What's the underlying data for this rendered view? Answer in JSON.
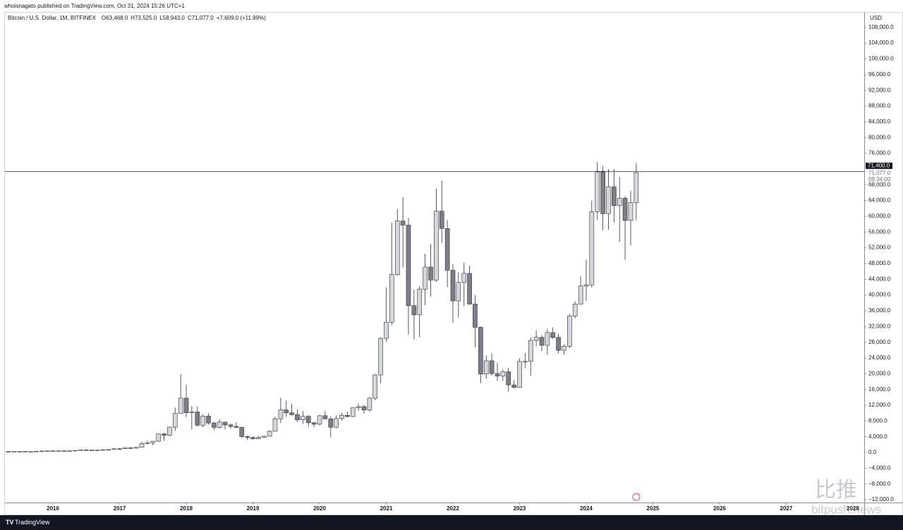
{
  "chart_data": {
    "type": "candlestick",
    "publisher": "whoisnagato published on TradingView.com, Oct 31, 2024 15:26 UTC+1",
    "symbol": "Bitcoin / U.S. Dollar, 1M, BITFINEX",
    "ohlc_texts": [
      "O63,468.0",
      "H73,525.0",
      "L58,943.0",
      "C71,077.0",
      "+7,609.0 (+11.99%)"
    ],
    "currency": "USD",
    "price_line": {
      "value": 71400,
      "label": "71,400.0"
    },
    "last_price": {
      "value": 71077,
      "label": "71,077.0"
    },
    "countdown": "09:34:00",
    "footer": "TradingView",
    "watermark": [
      "比推",
      "bitpush.news"
    ],
    "up_color": "#d6d7db",
    "down_color": "#7c7e88",
    "x": [
      2015.333,
      2015.417,
      2015.5,
      2015.583,
      2015.667,
      2015.75,
      2015.833,
      2015.917,
      2016,
      2016.083,
      2016.167,
      2016.25,
      2016.333,
      2016.417,
      2016.5,
      2016.583,
      2016.667,
      2016.75,
      2016.833,
      2016.917,
      2017,
      2017.083,
      2017.167,
      2017.25,
      2017.333,
      2017.417,
      2017.5,
      2017.583,
      2017.667,
      2017.75,
      2017.833,
      2017.917,
      2018,
      2018.083,
      2018.167,
      2018.25,
      2018.333,
      2018.417,
      2018.5,
      2018.583,
      2018.667,
      2018.75,
      2018.833,
      2018.917,
      2019,
      2019.083,
      2019.167,
      2019.25,
      2019.333,
      2019.417,
      2019.5,
      2019.583,
      2019.667,
      2019.75,
      2019.833,
      2019.917,
      2020,
      2020.083,
      2020.167,
      2020.25,
      2020.333,
      2020.417,
      2020.5,
      2020.583,
      2020.667,
      2020.75,
      2020.833,
      2020.917,
      2021,
      2021.083,
      2021.167,
      2021.25,
      2021.333,
      2021.417,
      2021.5,
      2021.583,
      2021.667,
      2021.75,
      2021.833,
      2021.917,
      2022,
      2022.083,
      2022.167,
      2022.25,
      2022.333,
      2022.417,
      2022.5,
      2022.583,
      2022.667,
      2022.75,
      2022.833,
      2022.917,
      2023,
      2023.083,
      2023.167,
      2023.25,
      2023.333,
      2023.417,
      2023.5,
      2023.583,
      2023.667,
      2023.75,
      2023.833,
      2023.917,
      2024,
      2024.083,
      2024.167,
      2024.25,
      2024.333,
      2024.417,
      2024.5,
      2024.583,
      2024.667,
      2024.75
    ],
    "open": [
      236,
      230,
      263,
      284,
      230,
      236,
      314,
      378,
      430,
      368,
      437,
      416,
      448,
      531,
      673,
      624,
      575,
      609,
      700,
      745,
      966,
      965,
      1190,
      1080,
      1350,
      2300,
      2480,
      2870,
      4730,
      4340,
      6450,
      9950,
      13800,
      10100,
      10300,
      6930,
      9240,
      7500,
      6390,
      7730,
      7010,
      6630,
      6370,
      4040,
      3830,
      3460,
      3850,
      4150,
      5400,
      8570,
      10820,
      10080,
      9600,
      8290,
      9190,
      7560,
      7190,
      9350,
      8540,
      6420,
      8630,
      9460,
      9140,
      11350,
      11660,
      10780,
      13800,
      19700,
      28990,
      33100,
      45200,
      58800,
      57750,
      37300,
      35000,
      41500,
      47100,
      43800,
      61300,
      56900,
      46300,
      38500,
      43200,
      45500,
      37700,
      31800,
      19950,
      23300,
      20050,
      19430,
      20500,
      17170,
      16550,
      23130,
      23150,
      28480,
      29250,
      27220,
      30470,
      29230,
      25950,
      26970,
      34650,
      37720,
      42280,
      42580,
      61180,
      71300,
      60650,
      67500,
      62700,
      64600,
      58970,
      63468
    ],
    "high": [
      247,
      268,
      315,
      285,
      245,
      334,
      502,
      467,
      462,
      445,
      440,
      467,
      550,
      780,
      690,
      625,
      630,
      740,
      755,
      980,
      1150,
      1200,
      1350,
      1360,
      2760,
      2990,
      2920,
      4750,
      5000,
      6470,
      11400,
      19890,
      17250,
      11800,
      11700,
      9770,
      10000,
      7760,
      8490,
      7760,
      7410,
      7680,
      6570,
      4300,
      4100,
      4200,
      4160,
      5600,
      9090,
      13880,
      13200,
      12330,
      10950,
      10500,
      9510,
      7750,
      9580,
      10500,
      9200,
      9470,
      10070,
      10380,
      11450,
      12470,
      12070,
      14100,
      19900,
      29300,
      41950,
      58350,
      61800,
      64900,
      59600,
      41300,
      42300,
      50500,
      52950,
      67000,
      69000,
      59100,
      47970,
      45800,
      48200,
      47450,
      40000,
      31950,
      24650,
      25200,
      22800,
      21080,
      21500,
      18400,
      23950,
      25250,
      29200,
      31000,
      29850,
      31400,
      31800,
      30200,
      27480,
      35200,
      38400,
      44750,
      48970,
      64000,
      73800,
      72800,
      71980,
      71950,
      70000,
      65100,
      66500,
      73525
    ],
    "low": [
      228,
      220,
      255,
      198,
      225,
      235,
      300,
      350,
      350,
      365,
      395,
      412,
      435,
      520,
      580,
      480,
      590,
      600,
      680,
      740,
      750,
      915,
      890,
      1060,
      1350,
      2100,
      1830,
      2700,
      2970,
      4150,
      5500,
      9950,
      9000,
      5900,
      6600,
      6430,
      7050,
      5750,
      6070,
      5880,
      6100,
      6200,
      3650,
      3150,
      3370,
      3390,
      3730,
      4080,
      5350,
      7510,
      9080,
      9400,
      7760,
      7300,
      6520,
      6430,
      6850,
      8450,
      3850,
      6150,
      8110,
      8900,
      8980,
      10550,
      9880,
      10380,
      13240,
      17600,
      28130,
      32300,
      44950,
      47000,
      30000,
      28800,
      29300,
      37400,
      39600,
      43300,
      53250,
      42000,
      32950,
      34300,
      37200,
      37600,
      26700,
      17600,
      18800,
      19550,
      18150,
      18200,
      15480,
      16300,
      16500,
      21400,
      19550,
      26950,
      25800,
      24800,
      28850,
      25200,
      24900,
      26550,
      34100,
      37620,
      38550,
      41890,
      59000,
      56500,
      56600,
      58400,
      53500,
      49000,
      52600,
      58943
    ],
    "close": [
      230,
      263,
      284,
      230,
      236,
      314,
      378,
      430,
      368,
      437,
      416,
      448,
      531,
      673,
      624,
      575,
      609,
      700,
      745,
      966,
      965,
      1190,
      1080,
      1350,
      2300,
      2480,
      2870,
      4730,
      4340,
      6450,
      9950,
      13800,
      10100,
      10300,
      6930,
      9240,
      7500,
      6390,
      7730,
      7010,
      6630,
      6370,
      4040,
      3830,
      3460,
      3850,
      4150,
      5400,
      8570,
      10820,
      10080,
      9600,
      8290,
      9190,
      7560,
      7190,
      9350,
      8540,
      6420,
      8630,
      9460,
      9140,
      11350,
      11660,
      10780,
      13800,
      19700,
      28990,
      33100,
      45200,
      58800,
      57750,
      37300,
      35000,
      41500,
      47100,
      43800,
      61300,
      56900,
      46300,
      38500,
      43200,
      45500,
      37700,
      31800,
      19950,
      23300,
      20050,
      19430,
      20500,
      17170,
      16550,
      23130,
      23150,
      28480,
      29250,
      27220,
      30470,
      29230,
      25950,
      26970,
      34650,
      37720,
      42280,
      42580,
      61180,
      71300,
      60650,
      67500,
      62700,
      64600,
      58970,
      63468,
      71077
    ],
    "xlim": [
      2015.28,
      2028.17
    ],
    "xticks": [
      2016,
      2017,
      2018,
      2019,
      2020,
      2021,
      2022,
      2023,
      2024,
      2025,
      2026,
      2027,
      2028
    ],
    "ylim": [
      -12700,
      111900
    ],
    "yticks": [
      {
        "value": 108000,
        "label": "108,000.0"
      },
      {
        "value": 104000,
        "label": "104,000.0"
      },
      {
        "value": 100000,
        "label": "100,000.0"
      },
      {
        "value": 96000,
        "label": "96,000.0"
      },
      {
        "value": 92000,
        "label": "92,000.0"
      },
      {
        "value": 88000,
        "label": "88,000.0"
      },
      {
        "value": 84000,
        "label": "84,000.0"
      },
      {
        "value": 80000,
        "label": "80,000.0"
      },
      {
        "value": 76000,
        "label": "76,000.0"
      },
      {
        "value": 68000,
        "label": "68,000.0"
      },
      {
        "value": 64000,
        "label": "64,000.0"
      },
      {
        "value": 60000,
        "label": "60,000.0"
      },
      {
        "value": 56000,
        "label": "56,000.0"
      },
      {
        "value": 52000,
        "label": "52,000.0"
      },
      {
        "value": 48000,
        "label": "48,000.0"
      },
      {
        "value": 44000,
        "label": "44,000.0"
      },
      {
        "value": 40000,
        "label": "40,000.0"
      },
      {
        "value": 36000,
        "label": "36,000.0"
      },
      {
        "value": 32000,
        "label": "32,000.0"
      },
      {
        "value": 28000,
        "label": "28,000.0"
      },
      {
        "value": 24000,
        "label": "24,000.0"
      },
      {
        "value": 20000,
        "label": "20,000.0"
      },
      {
        "value": 16000,
        "label": "16,000.0"
      },
      {
        "value": 12000,
        "label": "12,000.0"
      },
      {
        "value": 8000,
        "label": "8,000.0"
      },
      {
        "value": 4000,
        "label": "4,000.0"
      },
      {
        "value": 0,
        "label": "0.0"
      },
      {
        "value": -4000,
        "label": "−4,000.0"
      },
      {
        "value": -8000,
        "label": "−8,000.0"
      },
      {
        "value": -12000,
        "label": "−12,000.0"
      }
    ],
    "grid": false
  }
}
